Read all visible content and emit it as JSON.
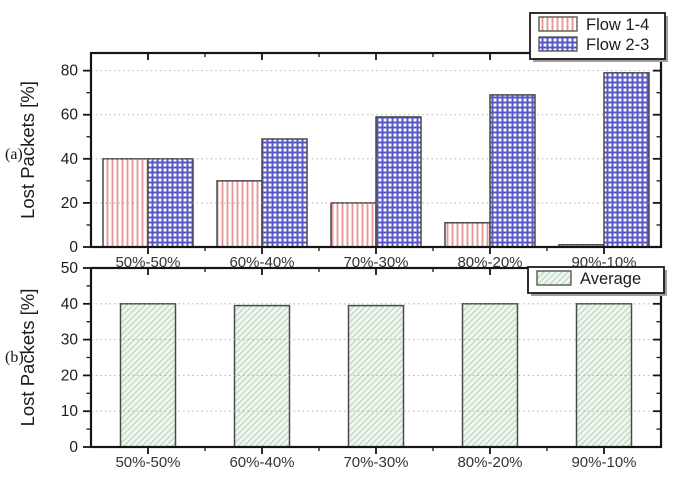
{
  "panels": [
    {
      "label": "(a)"
    },
    {
      "label": "(b)"
    }
  ],
  "colors": {
    "background": "#ffffff",
    "axis": "#141414",
    "tick_text": "#1c1c1c",
    "category_text": "#333333",
    "grid": "#9a9a9a",
    "bar_border": "#4a4a4a",
    "flow14_hatch": "#e89898",
    "flow14_bg": "#ffffff",
    "flow23_hatch": "#5757c8",
    "flow23_bg": "#ffffff",
    "average_hatch": "#c9dcc9",
    "average_bg": "#f1f7f1",
    "legend_border": "#1a1a1a",
    "legend_bg": "#ffffff",
    "legend_shadow": "#a0a0a0"
  },
  "chart_data": [
    {
      "panel": "(a)",
      "type": "bar",
      "title": "",
      "xlabel": "",
      "ylabel": "Lost Packets [%]",
      "categories": [
        "50%-50%",
        "60%-40%",
        "70%-30%",
        "80%-20%",
        "90%-10%"
      ],
      "series": [
        {
          "name": "Flow 1-4",
          "pattern": "flow14",
          "values": [
            40,
            30,
            20,
            11,
            1
          ]
        },
        {
          "name": "Flow 2-3",
          "pattern": "flow23",
          "values": [
            40,
            49,
            59,
            69,
            79
          ]
        }
      ],
      "ylim": [
        0,
        88
      ],
      "yticks": [
        0,
        20,
        40,
        60,
        80
      ],
      "yminor_step": 10,
      "grid": "dotted-horizontal",
      "legend": {
        "position": "top-right",
        "entries": [
          "Flow 1-4",
          "Flow 2-3"
        ]
      }
    },
    {
      "panel": "(b)",
      "type": "bar",
      "title": "",
      "xlabel": "",
      "ylabel": "Lost Packets [%]",
      "categories": [
        "50%-50%",
        "60%-40%",
        "70%-30%",
        "80%-20%",
        "90%-10%"
      ],
      "series": [
        {
          "name": "Average",
          "pattern": "average",
          "values": [
            40,
            39.5,
            39.5,
            40,
            40
          ]
        }
      ],
      "ylim": [
        0,
        50
      ],
      "yticks": [
        0,
        10,
        20,
        30,
        40,
        50
      ],
      "yminor_step": 5,
      "grid": "dotted-horizontal",
      "legend": {
        "position": "top-right",
        "entries": [
          "Average"
        ]
      }
    }
  ]
}
